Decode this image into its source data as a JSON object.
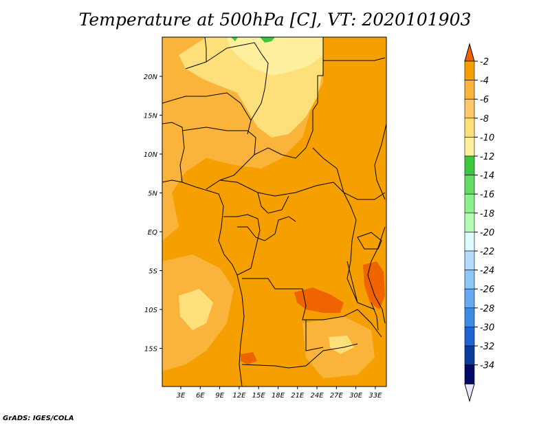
{
  "title": "Temperature at 500hPa [C], VT: 2020101903",
  "credit": "GrADS: IGES/COLA",
  "map": {
    "lat_labels": [
      {
        "label": "20N",
        "lat": 20
      },
      {
        "label": "15N",
        "lat": 15
      },
      {
        "label": "10N",
        "lat": 10
      },
      {
        "label": "5N",
        "lat": 5
      },
      {
        "label": "EQ",
        "lat": 0
      },
      {
        "label": "5S",
        "lat": -5
      },
      {
        "label": "10S",
        "lat": -10
      },
      {
        "label": "15S",
        "lat": -15
      }
    ],
    "lon_labels": [
      {
        "label": "3E",
        "lon": 3
      },
      {
        "label": "6E",
        "lon": 6
      },
      {
        "label": "9E",
        "lon": 9
      },
      {
        "label": "12E",
        "lon": 12
      },
      {
        "label": "15E",
        "lon": 15
      },
      {
        "label": "18E",
        "lon": 18
      },
      {
        "label": "21E",
        "lon": 21
      },
      {
        "label": "24E",
        "lon": 24
      },
      {
        "label": "27E",
        "lon": 27
      },
      {
        "label": "30E",
        "lon": 30
      },
      {
        "label": "33E",
        "lon": 33
      }
    ],
    "colors": {
      "t_m4_m2": "#f06400",
      "t_m6_m4": "#f5a000",
      "t_m8_m6": "#fab43c",
      "t_m10_m8": "#fde07a",
      "t_m12_m10": "#fff0a0",
      "t_green": "#3cc83c"
    }
  },
  "colorbar": {
    "labels": [
      "-2",
      "-4",
      "-6",
      "-8",
      "-10",
      "-12",
      "-14",
      "-16",
      "-18",
      "-20",
      "-22",
      "-24",
      "-26",
      "-28",
      "-30",
      "-32",
      "-34"
    ],
    "colors": [
      "#f06400",
      "#f5a000",
      "#fab43c",
      "#fac864",
      "#fde07a",
      "#fff0a0",
      "#3cc83c",
      "#64dc64",
      "#8cf08c",
      "#b4fab4",
      "#dcfaff",
      "#b4dcfa",
      "#8cc8f5",
      "#64aaf0",
      "#3c8ce6",
      "#1e64d2",
      "#0a3ca0",
      "#000a64",
      "#e6e6ff"
    ]
  }
}
